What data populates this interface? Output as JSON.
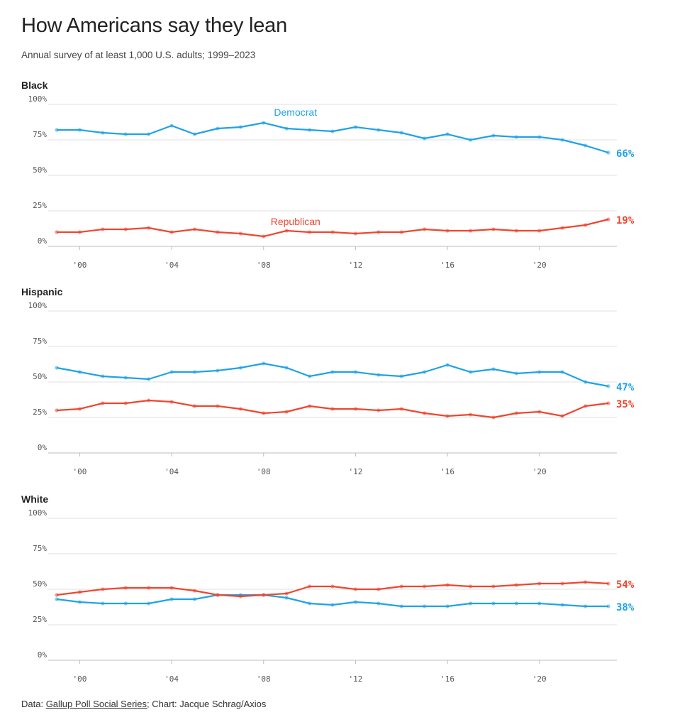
{
  "header": {
    "title": "How Americans say they lean",
    "subtitle": "Annual survey of at least 1,000 U.S. adults; 1999–2023"
  },
  "footer": {
    "prefix": "Data: ",
    "source_link": "Gallup Poll Social Series",
    "suffix": "; Chart: Jacque Schrag/Axios"
  },
  "colors": {
    "democrat": "#1fa2e8",
    "republican": "#f0452e",
    "grid": "#e2e2e2",
    "axis": "#bdbdbd"
  },
  "chart_data": [
    {
      "type": "line",
      "title": "Black",
      "x": [
        1999,
        2000,
        2001,
        2002,
        2003,
        2004,
        2005,
        2006,
        2007,
        2008,
        2009,
        2010,
        2011,
        2012,
        2013,
        2014,
        2015,
        2016,
        2017,
        2018,
        2019,
        2020,
        2021,
        2022,
        2023
      ],
      "ylim": [
        0,
        100
      ],
      "yticks": [
        "100%",
        "75%",
        "50%",
        "25%",
        "0%"
      ],
      "xticks": [
        "'00",
        "'04",
        "'08",
        "'12",
        "'16",
        "'20"
      ],
      "series": [
        {
          "name": "Democrat",
          "color": "democrat",
          "end_label": "66%",
          "values": [
            82,
            82,
            80,
            79,
            79,
            85,
            79,
            83,
            84,
            87,
            83,
            82,
            81,
            84,
            82,
            80,
            76,
            79,
            75,
            78,
            77,
            77,
            75,
            71,
            66
          ]
        },
        {
          "name": "Republican",
          "color": "republican",
          "end_label": "19%",
          "values": [
            10,
            10,
            12,
            12,
            13,
            10,
            12,
            10,
            9,
            7,
            11,
            10,
            10,
            9,
            10,
            10,
            12,
            11,
            11,
            12,
            11,
            11,
            13,
            15,
            19
          ]
        }
      ]
    },
    {
      "type": "line",
      "title": "Hispanic",
      "x": [
        1999,
        2000,
        2001,
        2002,
        2003,
        2004,
        2005,
        2006,
        2007,
        2008,
        2009,
        2010,
        2011,
        2012,
        2013,
        2014,
        2015,
        2016,
        2017,
        2018,
        2019,
        2020,
        2021,
        2022,
        2023
      ],
      "ylim": [
        0,
        100
      ],
      "yticks": [
        "100%",
        "75%",
        "50%",
        "25%",
        "0%"
      ],
      "xticks": [
        "'00",
        "'04",
        "'08",
        "'12",
        "'16",
        "'20"
      ],
      "series": [
        {
          "color": "democrat",
          "end_label": "47%",
          "values": [
            60,
            57,
            54,
            53,
            52,
            57,
            57,
            58,
            60,
            63,
            60,
            54,
            57,
            57,
            55,
            54,
            57,
            62,
            57,
            59,
            56,
            57,
            57,
            50,
            47
          ]
        },
        {
          "color": "republican",
          "end_label": "35%",
          "values": [
            30,
            31,
            35,
            35,
            37,
            36,
            33,
            33,
            31,
            28,
            29,
            33,
            31,
            31,
            30,
            31,
            28,
            26,
            27,
            25,
            28,
            29,
            26,
            33,
            35
          ]
        }
      ]
    },
    {
      "type": "line",
      "title": "White",
      "x": [
        1999,
        2000,
        2001,
        2002,
        2003,
        2004,
        2005,
        2006,
        2007,
        2008,
        2009,
        2010,
        2011,
        2012,
        2013,
        2014,
        2015,
        2016,
        2017,
        2018,
        2019,
        2020,
        2021,
        2022,
        2023
      ],
      "ylim": [
        0,
        100
      ],
      "yticks": [
        "100%",
        "75%",
        "50%",
        "25%",
        "0%"
      ],
      "xticks": [
        "'00",
        "'04",
        "'08",
        "'12",
        "'16",
        "'20"
      ],
      "series": [
        {
          "color": "democrat",
          "end_label": "38%",
          "values": [
            43,
            41,
            40,
            40,
            40,
            43,
            43,
            46,
            46,
            46,
            44,
            40,
            39,
            41,
            40,
            38,
            38,
            38,
            40,
            40,
            40,
            40,
            39,
            38,
            38
          ]
        },
        {
          "color": "republican",
          "end_label": "54%",
          "values": [
            46,
            48,
            50,
            51,
            51,
            51,
            49,
            46,
            45,
            46,
            47,
            52,
            52,
            50,
            50,
            52,
            52,
            53,
            52,
            52,
            53,
            54,
            54,
            55,
            54
          ]
        }
      ]
    }
  ]
}
